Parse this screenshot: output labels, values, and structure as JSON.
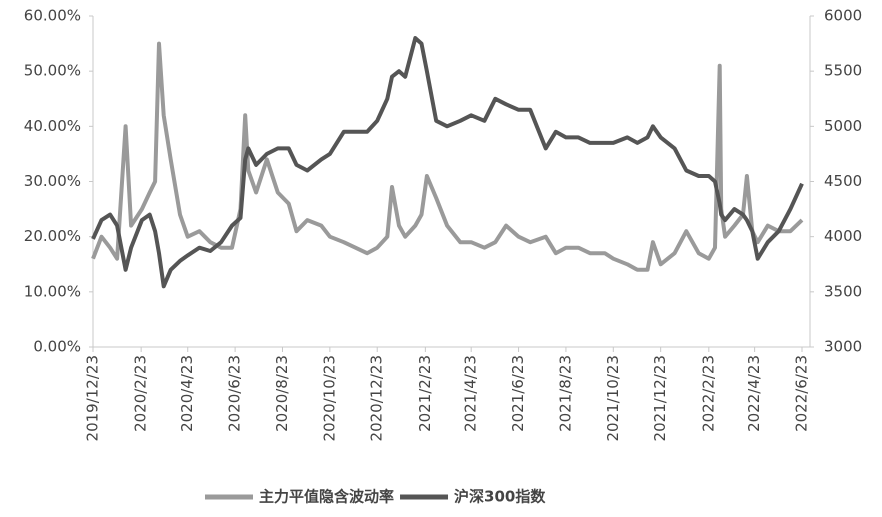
{
  "chart_data": {
    "type": "line",
    "x": [
      "2019/12/23",
      "2020/1/3",
      "2020/1/14",
      "2020/1/23",
      "2020/2/3",
      "2020/2/10",
      "2020/2/24",
      "2020/3/5",
      "2020/3/12",
      "2020/3/17",
      "2020/3/23",
      "2020/4/1",
      "2020/4/13",
      "2020/4/23",
      "2020/5/8",
      "2020/5/22",
      "2020/6/5",
      "2020/6/19",
      "2020/6/30",
      "2020/7/6",
      "2020/7/10",
      "2020/7/20",
      "2020/8/3",
      "2020/8/17",
      "2020/8/31",
      "2020/9/10",
      "2020/9/24",
      "2020/10/12",
      "2020/10/23",
      "2020/11/10",
      "2020/11/25",
      "2020/12/10",
      "2020/12/23",
      "2021/1/5",
      "2021/1/11",
      "2021/1/20",
      "2021/1/28",
      "2021/2/10",
      "2021/2/18",
      "2021/2/25",
      "2021/3/9",
      "2021/3/23",
      "2021/4/9",
      "2021/4/23",
      "2021/5/10",
      "2021/5/24",
      "2021/6/7",
      "2021/6/23",
      "2021/7/8",
      "2021/7/28",
      "2021/8/10",
      "2021/8/23",
      "2021/9/8",
      "2021/9/23",
      "2021/10/12",
      "2021/10/23",
      "2021/11/10",
      "2021/11/23",
      "2021/12/6",
      "2021/12/13",
      "2021/12/23",
      "2022/1/10",
      "2022/1/25",
      "2022/2/10",
      "2022/2/23",
      "2022/3/3",
      "2022/3/9",
      "2022/3/11",
      "2022/3/16",
      "2022/3/28",
      "2022/4/8",
      "2022/4/13",
      "2022/4/20",
      "2022/4/27",
      "2022/5/10",
      "2022/5/24",
      "2022/6/8",
      "2022/6/23"
    ],
    "series": [
      {
        "name": "主力平值隐含波动率",
        "color": "#9a9a9a",
        "axis": "y",
        "values": [
          16,
          20,
          18,
          16,
          40,
          22,
          25,
          28,
          30,
          55,
          42,
          34,
          24,
          20,
          21,
          19,
          18,
          18,
          25,
          42,
          32,
          28,
          34,
          28,
          26,
          21,
          23,
          22,
          20,
          19,
          18,
          17,
          18,
          20,
          29,
          22,
          20,
          22,
          24,
          31,
          27,
          22,
          19,
          19,
          18,
          19,
          22,
          20,
          19,
          20,
          17,
          18,
          18,
          17,
          17,
          16,
          15,
          14,
          14,
          19,
          15,
          17,
          21,
          17,
          16,
          18,
          51,
          25,
          20,
          22,
          24,
          31,
          21,
          19,
          22,
          21,
          21,
          23
        ]
      },
      {
        "name": "沪深300指数",
        "color": "#555555",
        "axis": "y2",
        "values": [
          3980,
          4150,
          4200,
          4100,
          3700,
          3900,
          4150,
          4200,
          4050,
          3850,
          3550,
          3700,
          3780,
          3830,
          3900,
          3870,
          3950,
          4100,
          4170,
          4700,
          4800,
          4650,
          4750,
          4800,
          4800,
          4650,
          4600,
          4700,
          4750,
          4950,
          4950,
          4950,
          5050,
          5250,
          5450,
          5500,
          5450,
          5800,
          5750,
          5500,
          5050,
          5000,
          5050,
          5100,
          5050,
          5250,
          5200,
          5150,
          5150,
          4800,
          4950,
          4900,
          4900,
          4850,
          4850,
          4850,
          4900,
          4850,
          4900,
          5000,
          4900,
          4800,
          4600,
          4550,
          4550,
          4500,
          4300,
          4200,
          4150,
          4250,
          4200,
          4150,
          4050,
          3800,
          3950,
          4050,
          4250,
          4480
        ]
      }
    ],
    "xlim": [
      "2019/12/23",
      "2022/6/23"
    ],
    "xticks": [
      "2019/12/23",
      "2020/2/23",
      "2020/4/23",
      "2020/6/23",
      "2020/8/23",
      "2020/10/23",
      "2020/12/23",
      "2021/2/23",
      "2021/4/23",
      "2021/6/23",
      "2021/8/23",
      "2021/10/23",
      "2021/12/23",
      "2022/2/23",
      "2022/4/23",
      "2022/6/23"
    ],
    "ylim": [
      0,
      60
    ],
    "yticks": [
      {
        "value": 0,
        "label": "0.00%"
      },
      {
        "value": 10,
        "label": "10.00%"
      },
      {
        "value": 20,
        "label": "20.00%"
      },
      {
        "value": 30,
        "label": "30.00%"
      },
      {
        "value": 40,
        "label": "40.00%"
      },
      {
        "value": 50,
        "label": "50.00%"
      },
      {
        "value": 60,
        "label": "60.00%"
      }
    ],
    "y2lim": [
      3000,
      6000
    ],
    "y2ticks": [
      3000,
      3500,
      4000,
      4500,
      5000,
      5500,
      6000
    ],
    "legend": "bottom"
  }
}
